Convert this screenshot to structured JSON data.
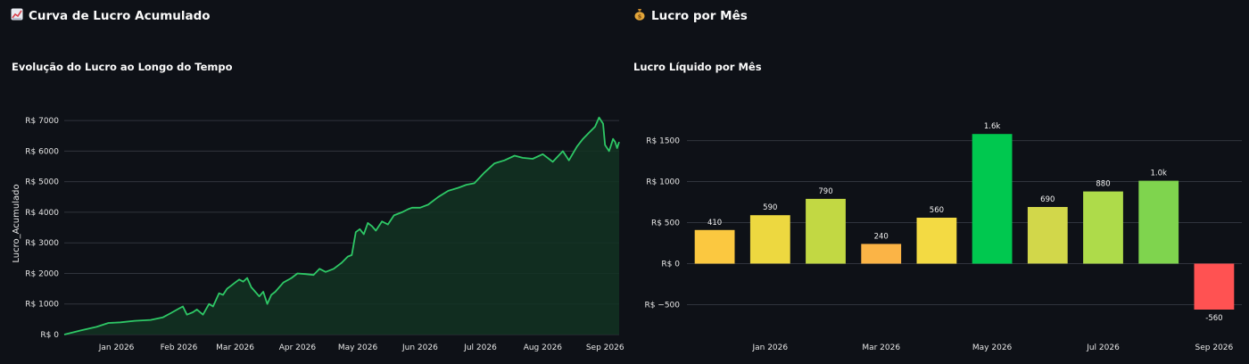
{
  "left": {
    "section_title": "Curva de Lucro Acumulado",
    "section_icon": "chart-increasing-icon"
  },
  "right": {
    "section_title": "Lucro por Mês",
    "section_icon": "money-bag-icon"
  },
  "chart_data": [
    {
      "type": "area",
      "title": "Evolução do Lucro ao Longo do Tempo",
      "xlabel": "",
      "ylabel": "Lucro_Acumulado",
      "y_tick_values": [
        0,
        1000,
        2000,
        3000,
        4000,
        5000,
        6000,
        7000
      ],
      "y_tick_labels": [
        "R$ 0",
        "R$ 1000",
        "R$ 2000",
        "R$ 3000",
        "R$ 4000",
        "R$ 5000",
        "R$ 6000",
        "R$ 7000"
      ],
      "x_tick_labels": [
        "Jan 2026",
        "Feb 2026",
        "Mar 2026",
        "Apr 2026",
        "May 2026",
        "Jun 2026",
        "Jul 2026",
        "Aug 2026",
        "Sep 2026"
      ],
      "x_tick_dates": [
        "2026-01-01",
        "2026-02-01",
        "2026-03-01",
        "2026-04-01",
        "2026-05-01",
        "2026-06-01",
        "2026-07-01",
        "2026-08-01",
        "2026-09-01"
      ],
      "xlim": [
        "2025-12-06",
        "2026-09-08"
      ],
      "ylim": [
        0,
        7500
      ],
      "grid": true,
      "line_color": "#2ec866",
      "fill_color": "#123322",
      "x": [
        "2025-12-06",
        "2025-12-14",
        "2025-12-22",
        "2025-12-28",
        "2026-01-03",
        "2026-01-10",
        "2026-01-18",
        "2026-01-24",
        "2026-01-28",
        "2026-02-01",
        "2026-02-03",
        "2026-02-05",
        "2026-02-08",
        "2026-02-10",
        "2026-02-13",
        "2026-02-16",
        "2026-02-18",
        "2026-02-21",
        "2026-02-23",
        "2026-02-25",
        "2026-02-27",
        "2026-03-01",
        "2026-03-03",
        "2026-03-05",
        "2026-03-07",
        "2026-03-09",
        "2026-03-11",
        "2026-03-13",
        "2026-03-15",
        "2026-03-17",
        "2026-03-19",
        "2026-03-21",
        "2026-03-25",
        "2026-03-29",
        "2026-04-01",
        "2026-04-05",
        "2026-04-09",
        "2026-04-12",
        "2026-04-15",
        "2026-04-19",
        "2026-04-23",
        "2026-04-26",
        "2026-04-28",
        "2026-04-30",
        "2026-05-02",
        "2026-05-04",
        "2026-05-06",
        "2026-05-08",
        "2026-05-10",
        "2026-05-13",
        "2026-05-16",
        "2026-05-19",
        "2026-05-23",
        "2026-05-26",
        "2026-05-28",
        "2026-06-01",
        "2026-06-05",
        "2026-06-10",
        "2026-06-15",
        "2026-06-20",
        "2026-06-24",
        "2026-06-28",
        "2026-07-03",
        "2026-07-08",
        "2026-07-13",
        "2026-07-18",
        "2026-07-22",
        "2026-07-27",
        "2026-08-01",
        "2026-08-06",
        "2026-08-11",
        "2026-08-14",
        "2026-08-18",
        "2026-08-21",
        "2026-08-24",
        "2026-08-27",
        "2026-08-29",
        "2026-08-31",
        "2026-09-01",
        "2026-09-03",
        "2026-09-04",
        "2026-09-05",
        "2026-09-06",
        "2026-09-07",
        "2026-09-08"
      ],
      "y": [
        0,
        130,
        250,
        380,
        400,
        450,
        480,
        560,
        700,
        850,
        920,
        650,
        730,
        820,
        650,
        1000,
        920,
        1350,
        1300,
        1500,
        1600,
        1700,
        1800,
        1730,
        1850,
        1550,
        1400,
        1250,
        1400,
        1000,
        1300,
        1400,
        1700,
        1850,
        2000,
        1980,
        1950,
        2150,
        2050,
        2150,
        2350,
        2550,
        2600,
        3350,
        3450,
        3280,
        3650,
        3550,
        3400,
        3700,
        3600,
        3900,
        4000,
        4100,
        4150,
        4150,
        4250,
        4500,
        4700,
        4800,
        4900,
        4950,
        5300,
        5600,
        5700,
        5850,
        5780,
        5750,
        5900,
        5650,
        6000,
        5700,
        6150,
        6400,
        6600,
        6800,
        7100,
        6900,
        6200,
        6000,
        6200,
        6400,
        6300,
        6100,
        6300
      ]
    },
    {
      "type": "bar",
      "title": "Lucro Líquido por Mês",
      "xlabel": "",
      "ylabel": "",
      "categories": [
        "2025-12",
        "2026-01",
        "2026-02",
        "2026-03",
        "2026-04",
        "2026-05",
        "2026-06",
        "2026-07",
        "2026-08",
        "2026-09"
      ],
      "values": [
        410,
        590,
        790,
        240,
        560,
        1580,
        690,
        880,
        1010,
        -560
      ],
      "data_labels": [
        "410",
        "590",
        "790",
        "240",
        "560",
        "1.6k",
        "690",
        "880",
        "1.0k",
        "-560"
      ],
      "bar_colors": [
        "#fbc840",
        "#edd840",
        "#c2d843",
        "#fbb446",
        "#f3da43",
        "#00c84f",
        "#d2d74a",
        "#aedb4a",
        "#7fd44e",
        "#ff5252"
      ],
      "y_tick_values": [
        -500,
        0,
        500,
        1000,
        1500
      ],
      "y_tick_labels": [
        "R$ −500",
        "R$ 0",
        "R$ 500",
        "R$ 1000",
        "R$ 1500"
      ],
      "x_tick_labels": [
        "Jan 2026",
        "Mar 2026",
        "May 2026",
        "Jul 2026",
        "Sep 2026"
      ],
      "x_tick_indices": [
        1,
        3,
        5,
        7,
        9
      ],
      "ylim": [
        -680,
        1800
      ],
      "grid": true
    }
  ]
}
